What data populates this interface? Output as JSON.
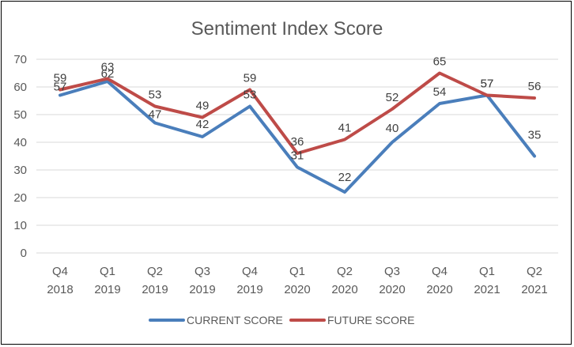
{
  "chart_data": {
    "type": "line",
    "title": "Sentiment Index Score",
    "xlabel": "",
    "ylabel": "",
    "ylim": [
      0,
      70
    ],
    "yticks": [
      0,
      10,
      20,
      30,
      40,
      50,
      60,
      70
    ],
    "categories": [
      [
        "Q4",
        "2018"
      ],
      [
        "Q1",
        "2019"
      ],
      [
        "Q2",
        "2019"
      ],
      [
        "Q3",
        "2019"
      ],
      [
        "Q4",
        "2019"
      ],
      [
        "Q1",
        "2020"
      ],
      [
        "Q2",
        "2020"
      ],
      [
        "Q3",
        "2020"
      ],
      [
        "Q4",
        "2020"
      ],
      [
        "Q1",
        "2021"
      ],
      [
        "Q2",
        "2021"
      ]
    ],
    "series": [
      {
        "name": "CURRENT SCORE",
        "color": "#4a7ebb",
        "values": [
          57,
          62,
          47,
          42,
          53,
          31,
          22,
          40,
          54,
          57,
          35
        ]
      },
      {
        "name": "FUTURE SCORE",
        "color": "#be4b48",
        "values": [
          59,
          63,
          53,
          49,
          59,
          36,
          41,
          52,
          65,
          57,
          56
        ]
      }
    ],
    "grid": true,
    "legend": "bottom"
  }
}
